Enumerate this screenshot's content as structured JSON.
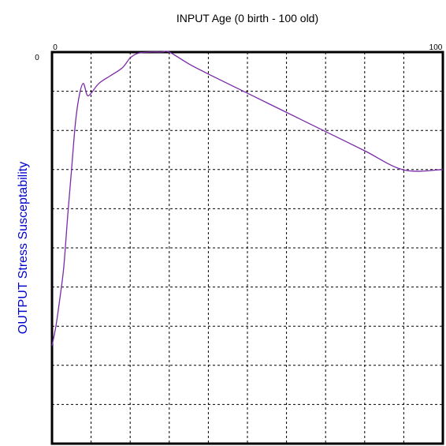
{
  "chart_data": {
    "type": "line",
    "title": "INPUT Age (0 birth - 100 old)",
    "xlabel": "INPUT Age (0 birth - 100 old)",
    "ylabel": "OUTPUT Stress Susceptability",
    "x_tick_labels": {
      "min": "0",
      "max": "100"
    },
    "y_tick_labels": {
      "top": "0"
    },
    "xlim": [
      0,
      100
    ],
    "ylim": [
      0,
      100
    ],
    "x_gridlines": 10,
    "y_gridlines": 10,
    "grid": true,
    "series": [
      {
        "values": [
          [
            0,
            75
          ],
          [
            1,
            70
          ],
          [
            2,
            63
          ],
          [
            3,
            55
          ],
          [
            4,
            42
          ],
          [
            5,
            30
          ],
          [
            6,
            18
          ],
          [
            7,
            11
          ],
          [
            8,
            8
          ],
          [
            9,
            11
          ],
          [
            10,
            10.5
          ],
          [
            12,
            8
          ],
          [
            15,
            6
          ],
          [
            18,
            4
          ],
          [
            20,
            1.5
          ],
          [
            22,
            0.3
          ],
          [
            25,
            0
          ],
          [
            28,
            0
          ],
          [
            30,
            0
          ],
          [
            35,
            3
          ],
          [
            40,
            5.6
          ],
          [
            50,
            10.5
          ],
          [
            60,
            15.4
          ],
          [
            70,
            20.3
          ],
          [
            80,
            25.2
          ],
          [
            90,
            30.1
          ],
          [
            100,
            30
          ]
        ]
      }
    ],
    "colors": {
      "line": "#7b2aa8",
      "ylabel": "#0000cc",
      "axis": "#000000"
    }
  }
}
